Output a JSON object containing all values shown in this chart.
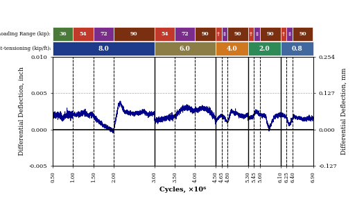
{
  "xlim": [
    0.5,
    6.9
  ],
  "ylim_inch": [
    -0.005,
    0.01
  ],
  "ylim_mm": [
    -0.127,
    0.254
  ],
  "yticks_inch": [
    -0.005,
    0.0,
    0.005,
    0.01
  ],
  "yticks_mm": [
    -0.127,
    0.0,
    0.127,
    0.254
  ],
  "xticks": [
    0.5,
    1.0,
    1.5,
    2.0,
    3.0,
    3.5,
    4.0,
    4.5,
    4.65,
    4.8,
    5.3,
    5.45,
    5.6,
    6.1,
    6.25,
    6.4,
    6.9
  ],
  "solid_vlines": [
    3.0,
    4.5,
    5.3,
    6.1
  ],
  "dashed_vlines": [
    1.0,
    1.5,
    2.0,
    3.5,
    4.0,
    4.65,
    4.8,
    5.45,
    5.6,
    6.25,
    6.4
  ],
  "xlabel": "Cycles, ×10⁶",
  "ylabel_left": "Differential Deflection, inch",
  "ylabel_right": "Differential Deflection, mm",
  "line_color": "#00008B",
  "pt_labels": [
    "8.0",
    "6.0",
    "4.0",
    "2.0",
    "0.8"
  ],
  "pt_colors": [
    "#1e3a8a",
    "#8b7d45",
    "#d07820",
    "#2e8b57",
    "#4169a0"
  ],
  "pt_xranges": [
    [
      0.5,
      3.0
    ],
    [
      3.0,
      4.5
    ],
    [
      4.5,
      5.3
    ],
    [
      5.3,
      6.1
    ],
    [
      6.1,
      6.9
    ]
  ],
  "loading_segments": [
    {
      "x": [
        0.5,
        1.0
      ],
      "label": "36",
      "color": "#4a7a3a"
    },
    {
      "x": [
        1.0,
        1.5
      ],
      "label": "54",
      "color": "#c0392b"
    },
    {
      "x": [
        1.5,
        2.0
      ],
      "label": "72",
      "color": "#7b2d8b"
    },
    {
      "x": [
        2.0,
        3.0
      ],
      "label": "90",
      "color": "#7a3010"
    },
    {
      "x": [
        3.0,
        3.5
      ],
      "label": "54",
      "color": "#c0392b"
    },
    {
      "x": [
        3.5,
        4.0
      ],
      "label": "72",
      "color": "#7b2d8b"
    },
    {
      "x": [
        4.0,
        4.5
      ],
      "label": "90",
      "color": "#7a3010"
    },
    {
      "x": [
        4.5,
        4.65
      ],
      "label": "†",
      "color": "#c0392b"
    },
    {
      "x": [
        4.65,
        4.8
      ],
      "label": "‡",
      "color": "#7b2d8b"
    },
    {
      "x": [
        4.8,
        5.3
      ],
      "label": "90",
      "color": "#7a3010"
    },
    {
      "x": [
        5.3,
        5.45
      ],
      "label": "†",
      "color": "#c0392b"
    },
    {
      "x": [
        5.45,
        5.6
      ],
      "label": "‡",
      "color": "#7b2d8b"
    },
    {
      "x": [
        5.6,
        6.1
      ],
      "label": "90",
      "color": "#7a3010"
    },
    {
      "x": [
        6.1,
        6.25
      ],
      "label": "†",
      "color": "#c0392b"
    },
    {
      "x": [
        6.25,
        6.4
      ],
      "label": "‡",
      "color": "#7b2d8b"
    },
    {
      "x": [
        6.4,
        6.9
      ],
      "label": "90",
      "color": "#7a3010"
    }
  ]
}
